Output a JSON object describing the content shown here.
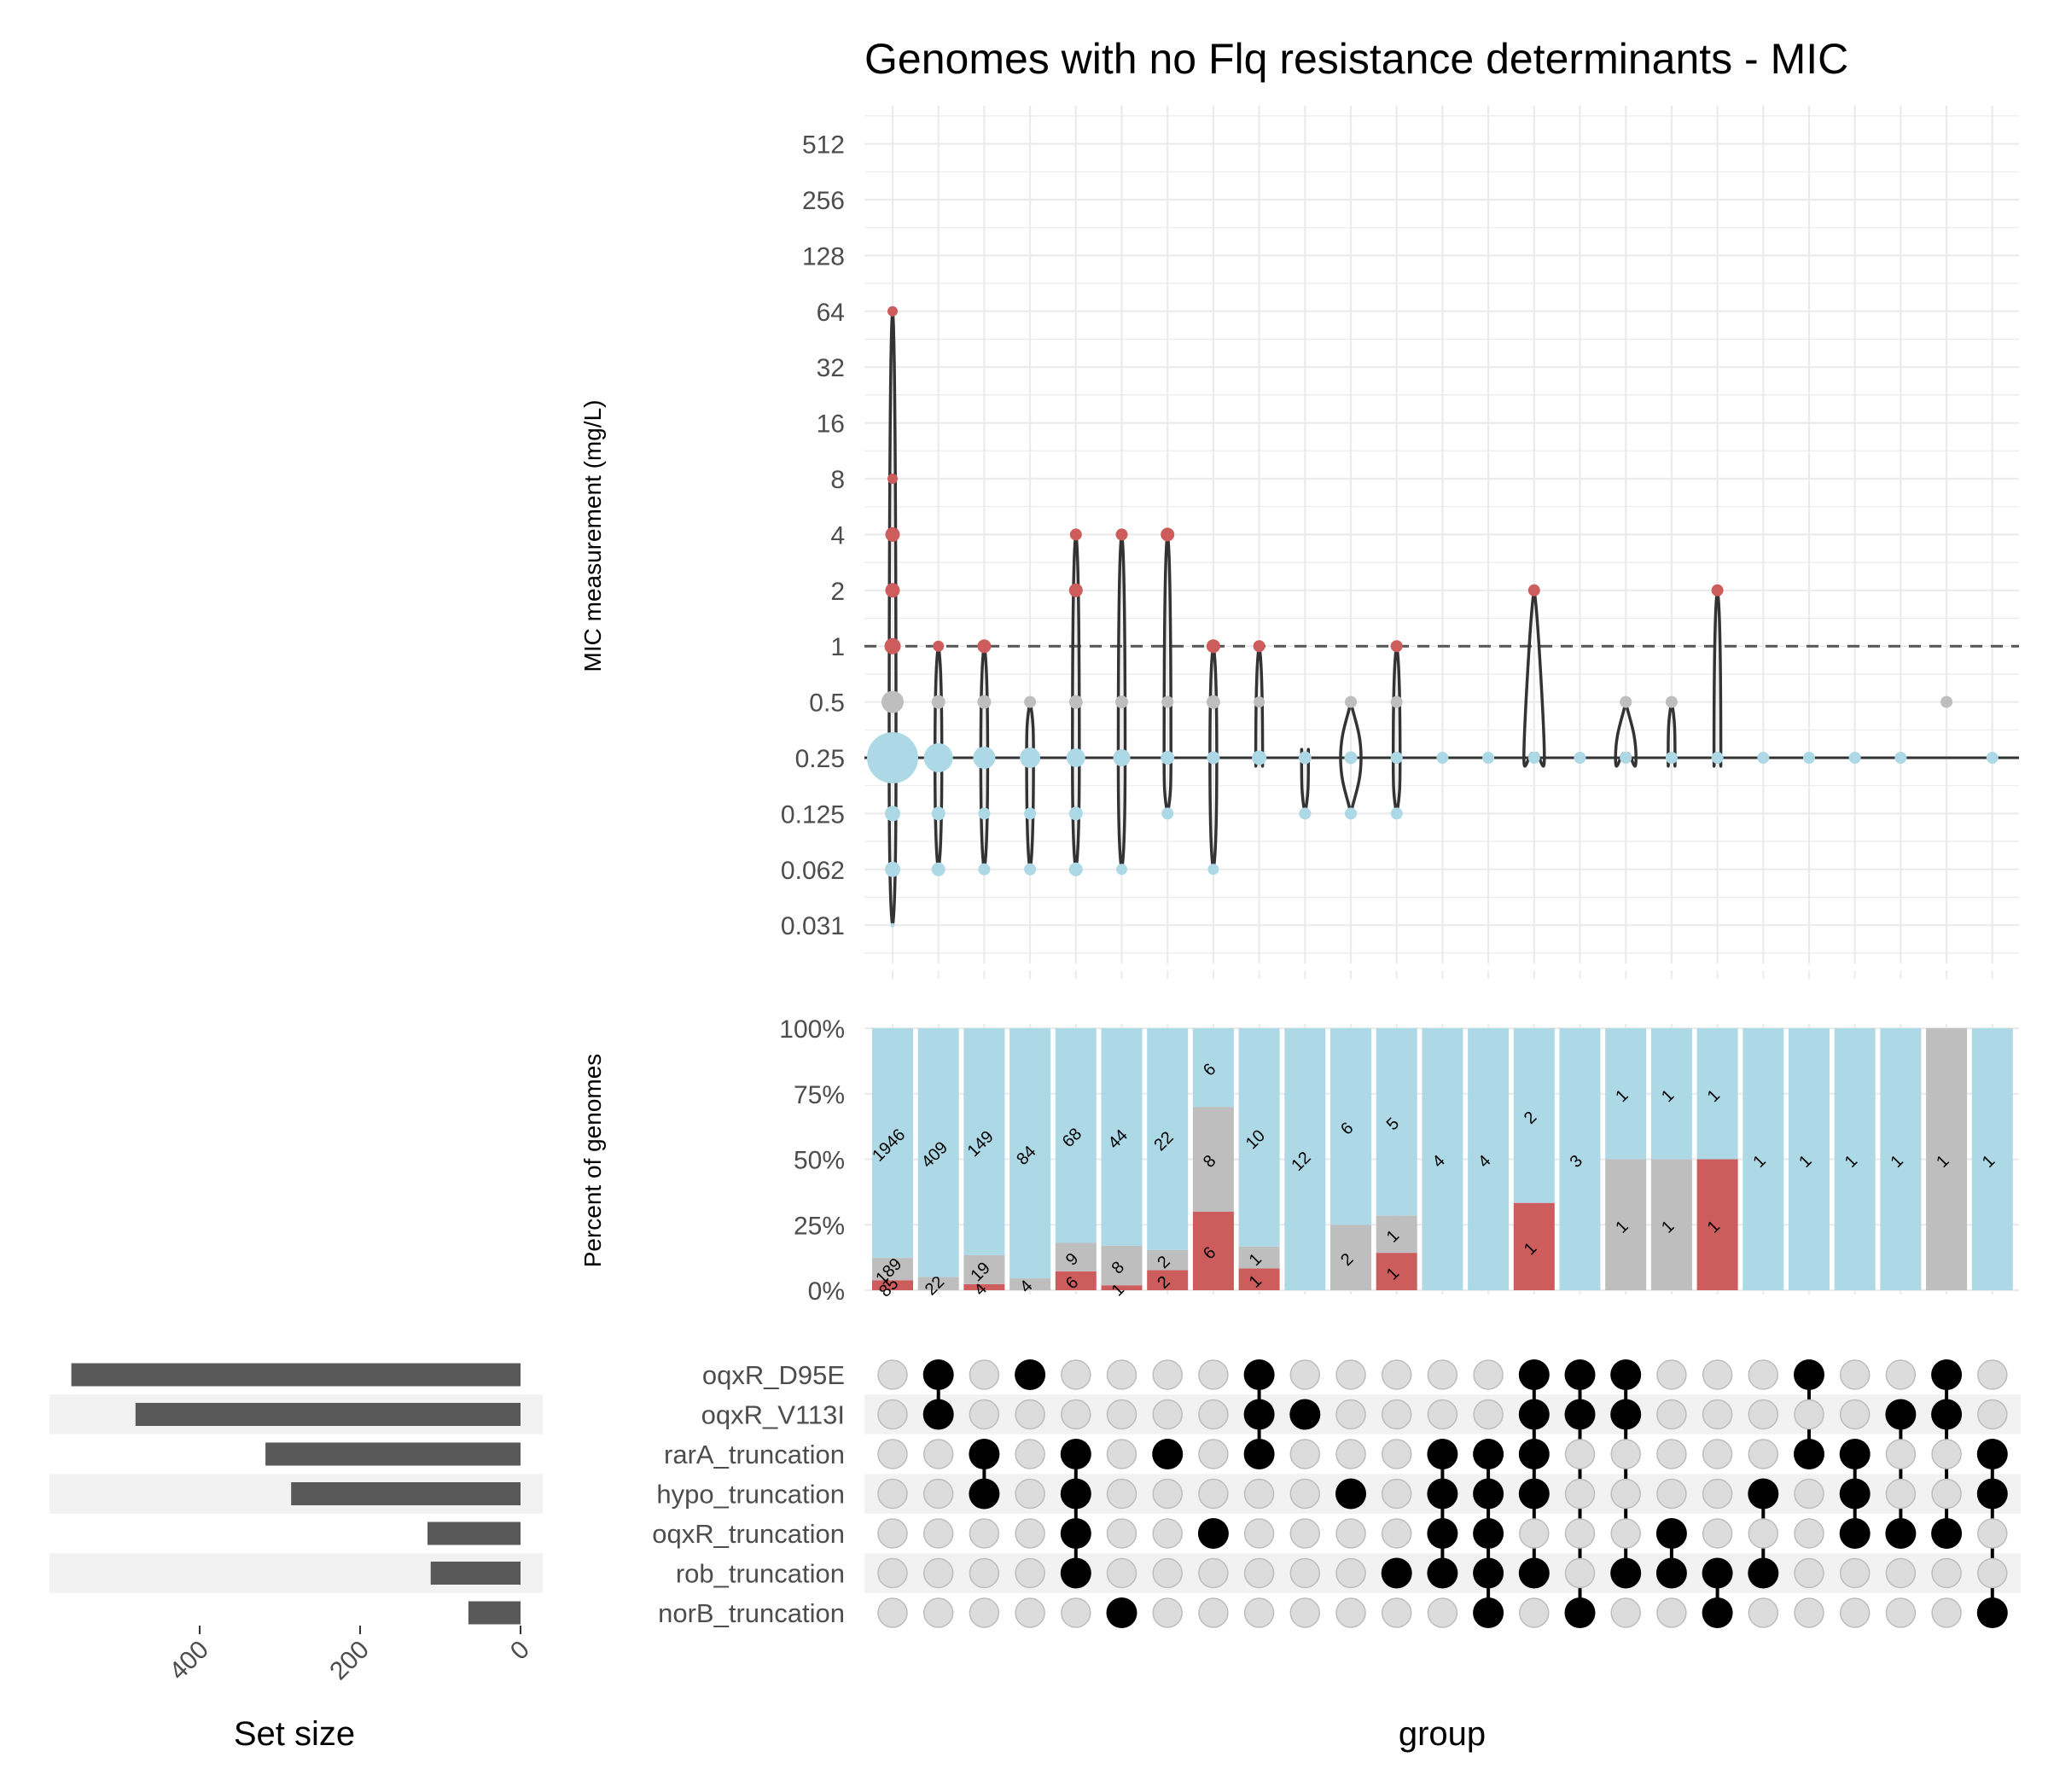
{
  "title": "Genomes with no Flq resistance determinants - MIC",
  "chart_data": [
    {
      "type": "violin",
      "panel": "mic",
      "ylabel": "MIC measurement (mg/L)",
      "y_scale": "log2",
      "y_ticks": [
        "0.031",
        "0.062",
        "0.125",
        "0.25",
        "0.5",
        "1",
        "2",
        "4",
        "8",
        "16",
        "32",
        "64",
        "128",
        "256",
        "512"
      ],
      "y_tick_values": [
        0.03125,
        0.0625,
        0.125,
        0.25,
        0.5,
        1,
        2,
        4,
        8,
        16,
        32,
        64,
        128,
        256,
        512
      ],
      "breakpoint": 1,
      "grid": true,
      "colors": {
        "susceptible": "#add8e6",
        "intermediate": "#bebebe",
        "resistant": "#cd5c5c"
      },
      "groups": [
        {
          "min": 0.03125,
          "max": 64,
          "points": [
            [
              0.03125,
              5
            ],
            [
              0.0625,
              18
            ],
            [
              0.125,
              18
            ],
            [
              0.25,
              60
            ],
            [
              0.5,
              26
            ],
            [
              1,
              19
            ],
            [
              2,
              17
            ],
            [
              4,
              17
            ],
            [
              8,
              12
            ],
            [
              64,
              12
            ]
          ]
        },
        {
          "min": 0.0625,
          "max": 1,
          "points": [
            [
              0.0625,
              16
            ],
            [
              0.125,
              16
            ],
            [
              0.25,
              34
            ],
            [
              0.5,
              16
            ],
            [
              1,
              13
            ]
          ]
        },
        {
          "min": 0.0625,
          "max": 1,
          "points": [
            [
              0.0625,
              14
            ],
            [
              0.125,
              14
            ],
            [
              0.25,
              26
            ],
            [
              0.5,
              16
            ],
            [
              1,
              16
            ]
          ]
        },
        {
          "min": 0.0625,
          "max": 0.5,
          "points": [
            [
              0.0625,
              14
            ],
            [
              0.125,
              14
            ],
            [
              0.25,
              24
            ],
            [
              0.5,
              14
            ]
          ]
        },
        {
          "min": 0.0625,
          "max": 4,
          "points": [
            [
              0.0625,
              16
            ],
            [
              0.125,
              16
            ],
            [
              0.25,
              22
            ],
            [
              0.5,
              16
            ],
            [
              2,
              16
            ],
            [
              4,
              14
            ]
          ]
        },
        {
          "min": 0.0625,
          "max": 4,
          "points": [
            [
              0.0625,
              13
            ],
            [
              0.25,
              20
            ],
            [
              0.5,
              15
            ],
            [
              4,
              14
            ]
          ]
        },
        {
          "min": 0.125,
          "max": 4,
          "points": [
            [
              0.125,
              14
            ],
            [
              0.25,
              16
            ],
            [
              0.5,
              14
            ],
            [
              4,
              16
            ]
          ]
        },
        {
          "min": 0.0625,
          "max": 1,
          "points": [
            [
              0.0625,
              13
            ],
            [
              0.25,
              15
            ],
            [
              0.5,
              16
            ],
            [
              1,
              16
            ]
          ]
        },
        {
          "min": 0.25,
          "max": 1,
          "points": [
            [
              0.25,
              17
            ],
            [
              0.5,
              13
            ],
            [
              1,
              14
            ]
          ]
        },
        {
          "min": 0.125,
          "max": 0.25,
          "points": [
            [
              0.125,
              14
            ],
            [
              0.25,
              15
            ]
          ]
        },
        {
          "min": 0.125,
          "max": 0.5,
          "points": [
            [
              0.125,
              14
            ],
            [
              0.25,
              15
            ],
            [
              0.5,
              14
            ]
          ]
        },
        {
          "min": 0.125,
          "max": 1,
          "points": [
            [
              0.125,
              14
            ],
            [
              0.25,
              14
            ],
            [
              0.5,
              14
            ],
            [
              1,
              14
            ]
          ]
        },
        {
          "min": 0.25,
          "max": 0.25,
          "points": [
            [
              0.25,
              14
            ]
          ]
        },
        {
          "min": 0.25,
          "max": 0.25,
          "points": [
            [
              0.25,
              14
            ]
          ]
        },
        {
          "min": 0.25,
          "max": 2,
          "points": [
            [
              0.25,
              14
            ],
            [
              2,
              14
            ]
          ]
        },
        {
          "min": 0.25,
          "max": 0.25,
          "points": [
            [
              0.25,
              14
            ]
          ]
        },
        {
          "min": 0.25,
          "max": 0.5,
          "points": [
            [
              0.25,
              14
            ],
            [
              0.5,
              14
            ]
          ]
        },
        {
          "min": 0.25,
          "max": 0.5,
          "points": [
            [
              0.25,
              14
            ],
            [
              0.5,
              14
            ]
          ]
        },
        {
          "min": 0.25,
          "max": 2,
          "points": [
            [
              0.25,
              14
            ],
            [
              2,
              14
            ]
          ]
        },
        {
          "min": 0.25,
          "max": 0.25,
          "points": [
            [
              0.25,
              14
            ]
          ]
        },
        {
          "min": 0.25,
          "max": 0.25,
          "points": [
            [
              0.25,
              14
            ]
          ]
        },
        {
          "min": 0.25,
          "max": 0.25,
          "points": [
            [
              0.25,
              14
            ]
          ]
        },
        {
          "min": 0.25,
          "max": 0.25,
          "points": [
            [
              0.25,
              14
            ]
          ]
        },
        {
          "min": 0.5,
          "max": 0.5,
          "points": [
            [
              0.5,
              14
            ]
          ]
        },
        {
          "min": 0.25,
          "max": 0.25,
          "points": [
            [
              0.25,
              14
            ]
          ]
        }
      ]
    },
    {
      "type": "bar",
      "stacked": true,
      "panel": "percent",
      "ylabel": "Percent of genomes",
      "y_ticks": [
        "0%",
        "25%",
        "50%",
        "75%",
        "100%"
      ],
      "y_tick_values": [
        0,
        25,
        50,
        75,
        100
      ],
      "series_order": [
        "resistant",
        "intermediate",
        "susceptible"
      ],
      "groups": [
        {
          "susceptible": 1946,
          "intermediate": 189,
          "resistant": 85,
          "labels": {
            "s": "1946",
            "i": "189",
            "r": "85"
          }
        },
        {
          "susceptible": 409,
          "intermediate": 22,
          "resistant": 0,
          "labels": {
            "s": "409",
            "i": "22"
          }
        },
        {
          "susceptible": 149,
          "intermediate": 19,
          "resistant": 4,
          "labels": {
            "s": "149",
            "i": "19",
            "r": "4"
          }
        },
        {
          "susceptible": 84,
          "intermediate": 4,
          "resistant": 0,
          "labels": {
            "s": "84",
            "i": "4"
          }
        },
        {
          "susceptible": 68,
          "intermediate": 9,
          "resistant": 6,
          "labels": {
            "s": "68",
            "i": "9",
            "r": "6"
          }
        },
        {
          "susceptible": 44,
          "intermediate": 8,
          "resistant": 1,
          "labels": {
            "s": "44",
            "i": "8",
            "r": "1"
          }
        },
        {
          "susceptible": 22,
          "intermediate": 2,
          "resistant": 2,
          "labels": {
            "s": "22",
            "i": "2",
            "r": "2"
          }
        },
        {
          "susceptible": 6,
          "intermediate": 8,
          "resistant": 6,
          "labels": {
            "s": "6",
            "i": "8",
            "r": "6"
          }
        },
        {
          "susceptible": 10,
          "intermediate": 1,
          "resistant": 1,
          "labels": {
            "s": "10",
            "i": "1",
            "r": "1"
          }
        },
        {
          "susceptible": 12,
          "intermediate": 0,
          "resistant": 0,
          "labels": {
            "s": "12"
          }
        },
        {
          "susceptible": 6,
          "intermediate": 2,
          "resistant": 0,
          "labels": {
            "s": "6",
            "i": "2"
          }
        },
        {
          "susceptible": 5,
          "intermediate": 1,
          "resistant": 1,
          "labels": {
            "s": "5",
            "i": "1",
            "r": "1"
          }
        },
        {
          "susceptible": 4,
          "intermediate": 0,
          "resistant": 0,
          "labels": {
            "s": "4"
          }
        },
        {
          "susceptible": 4,
          "intermediate": 0,
          "resistant": 0,
          "labels": {
            "s": "4"
          }
        },
        {
          "susceptible": 2,
          "intermediate": 0,
          "resistant": 1,
          "labels": {
            "s": "2",
            "r": "1"
          }
        },
        {
          "susceptible": 3,
          "intermediate": 0,
          "resistant": 0,
          "labels": {
            "s": "3"
          }
        },
        {
          "susceptible": 1,
          "intermediate": 1,
          "resistant": 0,
          "labels": {
            "s": "1",
            "i": "1"
          }
        },
        {
          "susceptible": 1,
          "intermediate": 1,
          "resistant": 0,
          "labels": {
            "s": "1",
            "i": "1"
          }
        },
        {
          "susceptible": 1,
          "intermediate": 0,
          "resistant": 1,
          "labels": {
            "s": "1",
            "r": "1"
          }
        },
        {
          "susceptible": 1,
          "intermediate": 0,
          "resistant": 0,
          "labels": {
            "s": "1"
          }
        },
        {
          "susceptible": 1,
          "intermediate": 0,
          "resistant": 0,
          "labels": {
            "s": "1"
          }
        },
        {
          "susceptible": 1,
          "intermediate": 0,
          "resistant": 0,
          "labels": {
            "s": "1"
          }
        },
        {
          "susceptible": 1,
          "intermediate": 0,
          "resistant": 0,
          "labels": {
            "s": "1"
          }
        },
        {
          "susceptible": 0,
          "intermediate": 1,
          "resistant": 0,
          "labels": {
            "i": "1"
          }
        },
        {
          "susceptible": 1,
          "intermediate": 0,
          "resistant": 0,
          "labels": {
            "s": "1"
          }
        }
      ]
    },
    {
      "type": "matrix",
      "panel": "upset",
      "xlabel": "group",
      "sets": [
        "oqxR_D95E",
        "oqxR_V113I",
        "rarA_truncation",
        "hypo_truncation",
        "oqxR_truncation",
        "rob_truncation",
        "norB_truncation"
      ],
      "memberships": [
        [],
        [
          0,
          1
        ],
        [
          2,
          3
        ],
        [
          0
        ],
        [
          2,
          3,
          4,
          5
        ],
        [
          6
        ],
        [
          2
        ],
        [
          4
        ],
        [
          0,
          1,
          2
        ],
        [
          1
        ],
        [
          3
        ],
        [
          5
        ],
        [
          2,
          3,
          4,
          5
        ],
        [
          2,
          3,
          4,
          5,
          6
        ],
        [
          0,
          1,
          2,
          3,
          5
        ],
        [
          0,
          1,
          6
        ],
        [
          0,
          1,
          5
        ],
        [
          4,
          5
        ],
        [
          5,
          6
        ],
        [
          3,
          5
        ],
        [
          0,
          2
        ],
        [
          2,
          3,
          4
        ],
        [
          1,
          4
        ],
        [
          0,
          1,
          4
        ],
        [
          2,
          3,
          6
        ]
      ]
    },
    {
      "type": "bar",
      "orientation": "horizontal",
      "panel": "set-size",
      "xlabel": "Set size",
      "x_ticks": [
        "400",
        "200",
        "0"
      ],
      "x_tick_values": [
        400,
        200,
        0
      ],
      "categories": [
        "oqxR_D95E",
        "oqxR_V113I",
        "rarA_truncation",
        "hypo_truncation",
        "oqxR_truncation",
        "rob_truncation",
        "norB_truncation"
      ],
      "values": [
        560,
        480,
        318,
        286,
        116,
        112,
        65
      ]
    }
  ]
}
